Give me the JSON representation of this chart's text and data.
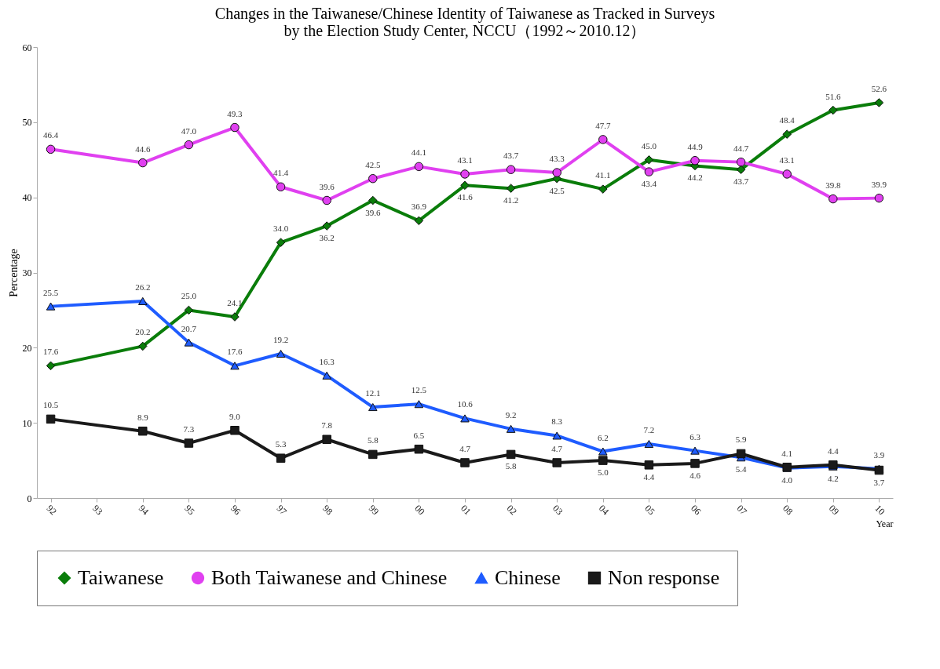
{
  "chart_data": {
    "type": "line",
    "title": "Changes in the Taiwanese/Chinese Identity of Taiwanese as Tracked in Surveys\nby the Election Study Center, NCCU（1992～2010.12）",
    "xlabel": "Year",
    "ylabel": "Percentage",
    "categories": [
      "92",
      "93",
      "94",
      "95",
      "96",
      "97",
      "98",
      "99",
      "00",
      "01",
      "02",
      "03",
      "04",
      "05",
      "06",
      "07",
      "08",
      "09",
      "10"
    ],
    "ylim": [
      0,
      60
    ],
    "yticks": [
      0,
      10,
      20,
      30,
      40,
      50,
      60
    ],
    "grid": false,
    "legend": "bottom",
    "series": [
      {
        "name": "Taiwanese",
        "color": "#0a7d0a",
        "marker": "diamond",
        "values": [
          17.6,
          null,
          20.2,
          25.0,
          24.1,
          34.0,
          36.2,
          39.6,
          36.9,
          41.6,
          41.2,
          42.5,
          41.1,
          45.0,
          44.2,
          43.7,
          48.4,
          51.6,
          52.6
        ],
        "value_labels": [
          "17.6",
          null,
          "20.2",
          "25.0",
          "24.1",
          "34.0",
          "36.2",
          "39.6",
          "36.9",
          "41.6",
          "41.2",
          "42.5",
          "41.1",
          "45.0",
          "44.2",
          "43.7",
          "48.4",
          "51.6",
          "52.6"
        ]
      },
      {
        "name": "Both Taiwanese and Chinese",
        "color": "#e040f0",
        "marker": "circle",
        "values": [
          46.4,
          null,
          44.6,
          47.0,
          49.3,
          41.4,
          39.6,
          42.5,
          44.1,
          43.1,
          43.7,
          43.3,
          47.7,
          43.4,
          44.9,
          44.7,
          43.1,
          39.8,
          39.9
        ],
        "value_labels": [
          "46.4",
          null,
          "44.6",
          "47.0",
          "49.3",
          "41.4",
          "39.6",
          "42.5",
          "44.1",
          "43.1",
          "43.7",
          "43.3",
          "47.7",
          "43.4",
          "44.9",
          "44.7",
          "43.1",
          "39.8",
          "39.9"
        ]
      },
      {
        "name": "Chinese",
        "color": "#1f5cff",
        "marker": "triangle",
        "values": [
          25.5,
          null,
          26.2,
          20.7,
          17.6,
          19.2,
          16.3,
          12.1,
          12.5,
          10.6,
          9.2,
          8.3,
          6.2,
          7.2,
          6.3,
          5.4,
          4.0,
          4.2,
          3.9
        ],
        "value_labels": [
          "25.5",
          null,
          "26.2",
          "20.7",
          "17.6",
          "19.2",
          "16.3",
          "12.1",
          "12.5",
          "10.6",
          "9.2",
          "8.3",
          "6.2",
          "7.2",
          "6.3",
          "5.4",
          "4.0",
          "4.2",
          "3.9"
        ]
      },
      {
        "name": "Non response",
        "color": "#1a1a1a",
        "marker": "square",
        "values": [
          10.5,
          null,
          8.9,
          7.3,
          9.0,
          5.3,
          7.8,
          5.8,
          6.5,
          4.7,
          5.8,
          4.7,
          5.0,
          4.4,
          4.6,
          5.9,
          4.1,
          4.4,
          3.7
        ],
        "value_labels": [
          "10.5",
          null,
          "8.9",
          "7.3",
          "9.0",
          "5.3",
          "7.8",
          "5.8",
          "6.5",
          "4.7",
          "5.8",
          "4.7",
          "5.0",
          "4.4",
          "4.6",
          "5.9",
          "4.1",
          "4.4",
          "3.7"
        ]
      }
    ]
  }
}
